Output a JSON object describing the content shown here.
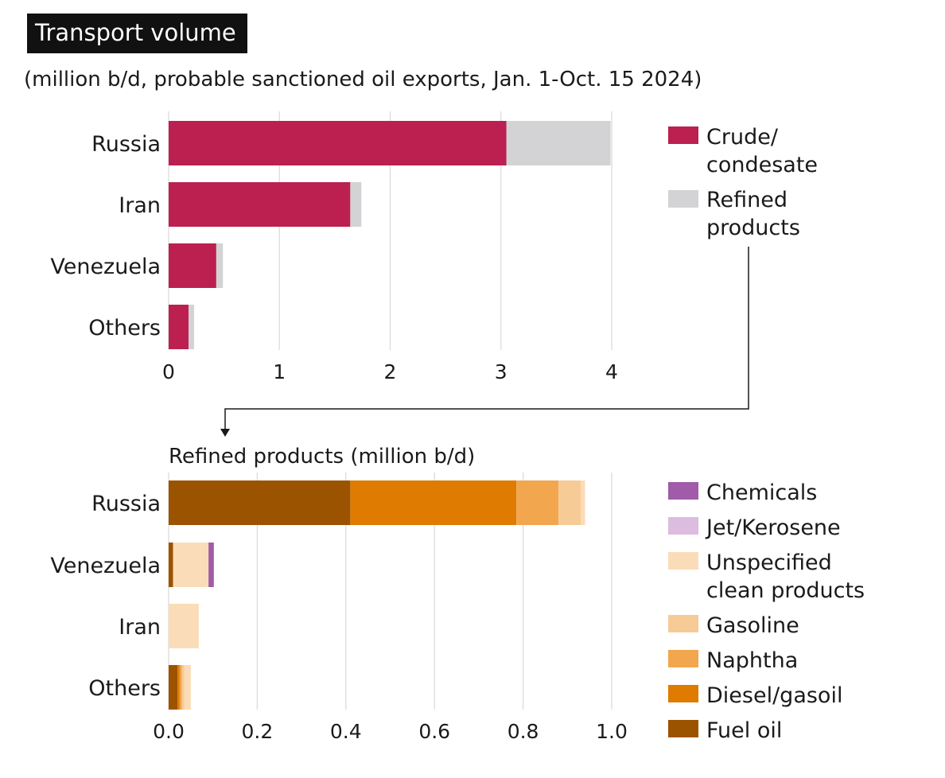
{
  "header": {
    "title": "Transport volume",
    "subtitle": "(million b/d, probable sanctioned oil exports, Jan. 1-Oct. 15 2024)"
  },
  "chart_data": [
    {
      "type": "bar",
      "orientation": "horizontal",
      "stacked": true,
      "title": "",
      "categories": [
        "Russia",
        "Iran",
        "Venezuela",
        "Others"
      ],
      "series": [
        {
          "name": "Crude/ condesate",
          "color": "#bb2050",
          "values": [
            3.05,
            1.64,
            0.43,
            0.18
          ]
        },
        {
          "name": "Refined products",
          "color": "#d3d3d5",
          "values": [
            0.94,
            0.1,
            0.06,
            0.05
          ]
        }
      ],
      "xlim": [
        0,
        4
      ],
      "xticks": [
        "0",
        "1",
        "2",
        "3",
        "4"
      ],
      "grid": true,
      "legend_position": "right"
    },
    {
      "type": "bar",
      "orientation": "horizontal",
      "stacked": true,
      "title": "Refined products (million b/d)",
      "categories": [
        "Russia",
        "Venezuela",
        "Iran",
        "Others"
      ],
      "series": [
        {
          "name": "Fuel oil",
          "color": "#9c5300",
          "values": [
            0.41,
            0.01,
            0.0,
            0.02
          ]
        },
        {
          "name": "Diesel/gasoil",
          "color": "#de7b00",
          "values": [
            0.375,
            0.0,
            0.0,
            0.005
          ]
        },
        {
          "name": "Naphtha",
          "color": "#f2a64d",
          "values": [
            0.095,
            0.0,
            0.0,
            0.005
          ]
        },
        {
          "name": "Gasoline",
          "color": "#f6cb96",
          "values": [
            0.05,
            0.0,
            0.0,
            0.005
          ]
        },
        {
          "name": "Unspecified clean products",
          "color": "#fbdcb8",
          "values": [
            0.01,
            0.08,
            0.068,
            0.015
          ]
        },
        {
          "name": "Jet/Kerosene",
          "color": "#dcbcdf",
          "values": [
            0.0,
            0.0,
            0.0,
            0.0
          ]
        },
        {
          "name": "Chemicals",
          "color": "#a05ca8",
          "values": [
            0.0,
            0.012,
            0.0,
            0.0
          ]
        }
      ],
      "xlim": [
        0,
        1.0
      ],
      "xticks": [
        "0.0",
        "0.2",
        "0.4",
        "0.6",
        "0.8",
        "1.0"
      ],
      "grid": true,
      "legend_position": "right"
    }
  ],
  "legend1": [
    {
      "lines": [
        "Crude/",
        "condesate"
      ],
      "color": "#bb2050"
    },
    {
      "lines": [
        "Refined",
        "products"
      ],
      "color": "#d3d3d5"
    }
  ],
  "legend2": [
    {
      "lines": [
        "Chemicals"
      ],
      "color": "#a05ca8"
    },
    {
      "lines": [
        "Jet/Kerosene"
      ],
      "color": "#dcbcdf"
    },
    {
      "lines": [
        "Unspecified",
        "clean products"
      ],
      "color": "#fbdcb8"
    },
    {
      "lines": [
        "Gasoline"
      ],
      "color": "#f6cb96"
    },
    {
      "lines": [
        "Naphtha"
      ],
      "color": "#f2a64d"
    },
    {
      "lines": [
        "Diesel/gasoil"
      ],
      "color": "#de7b00"
    },
    {
      "lines": [
        "Fuel oil"
      ],
      "color": "#9c5300"
    }
  ]
}
